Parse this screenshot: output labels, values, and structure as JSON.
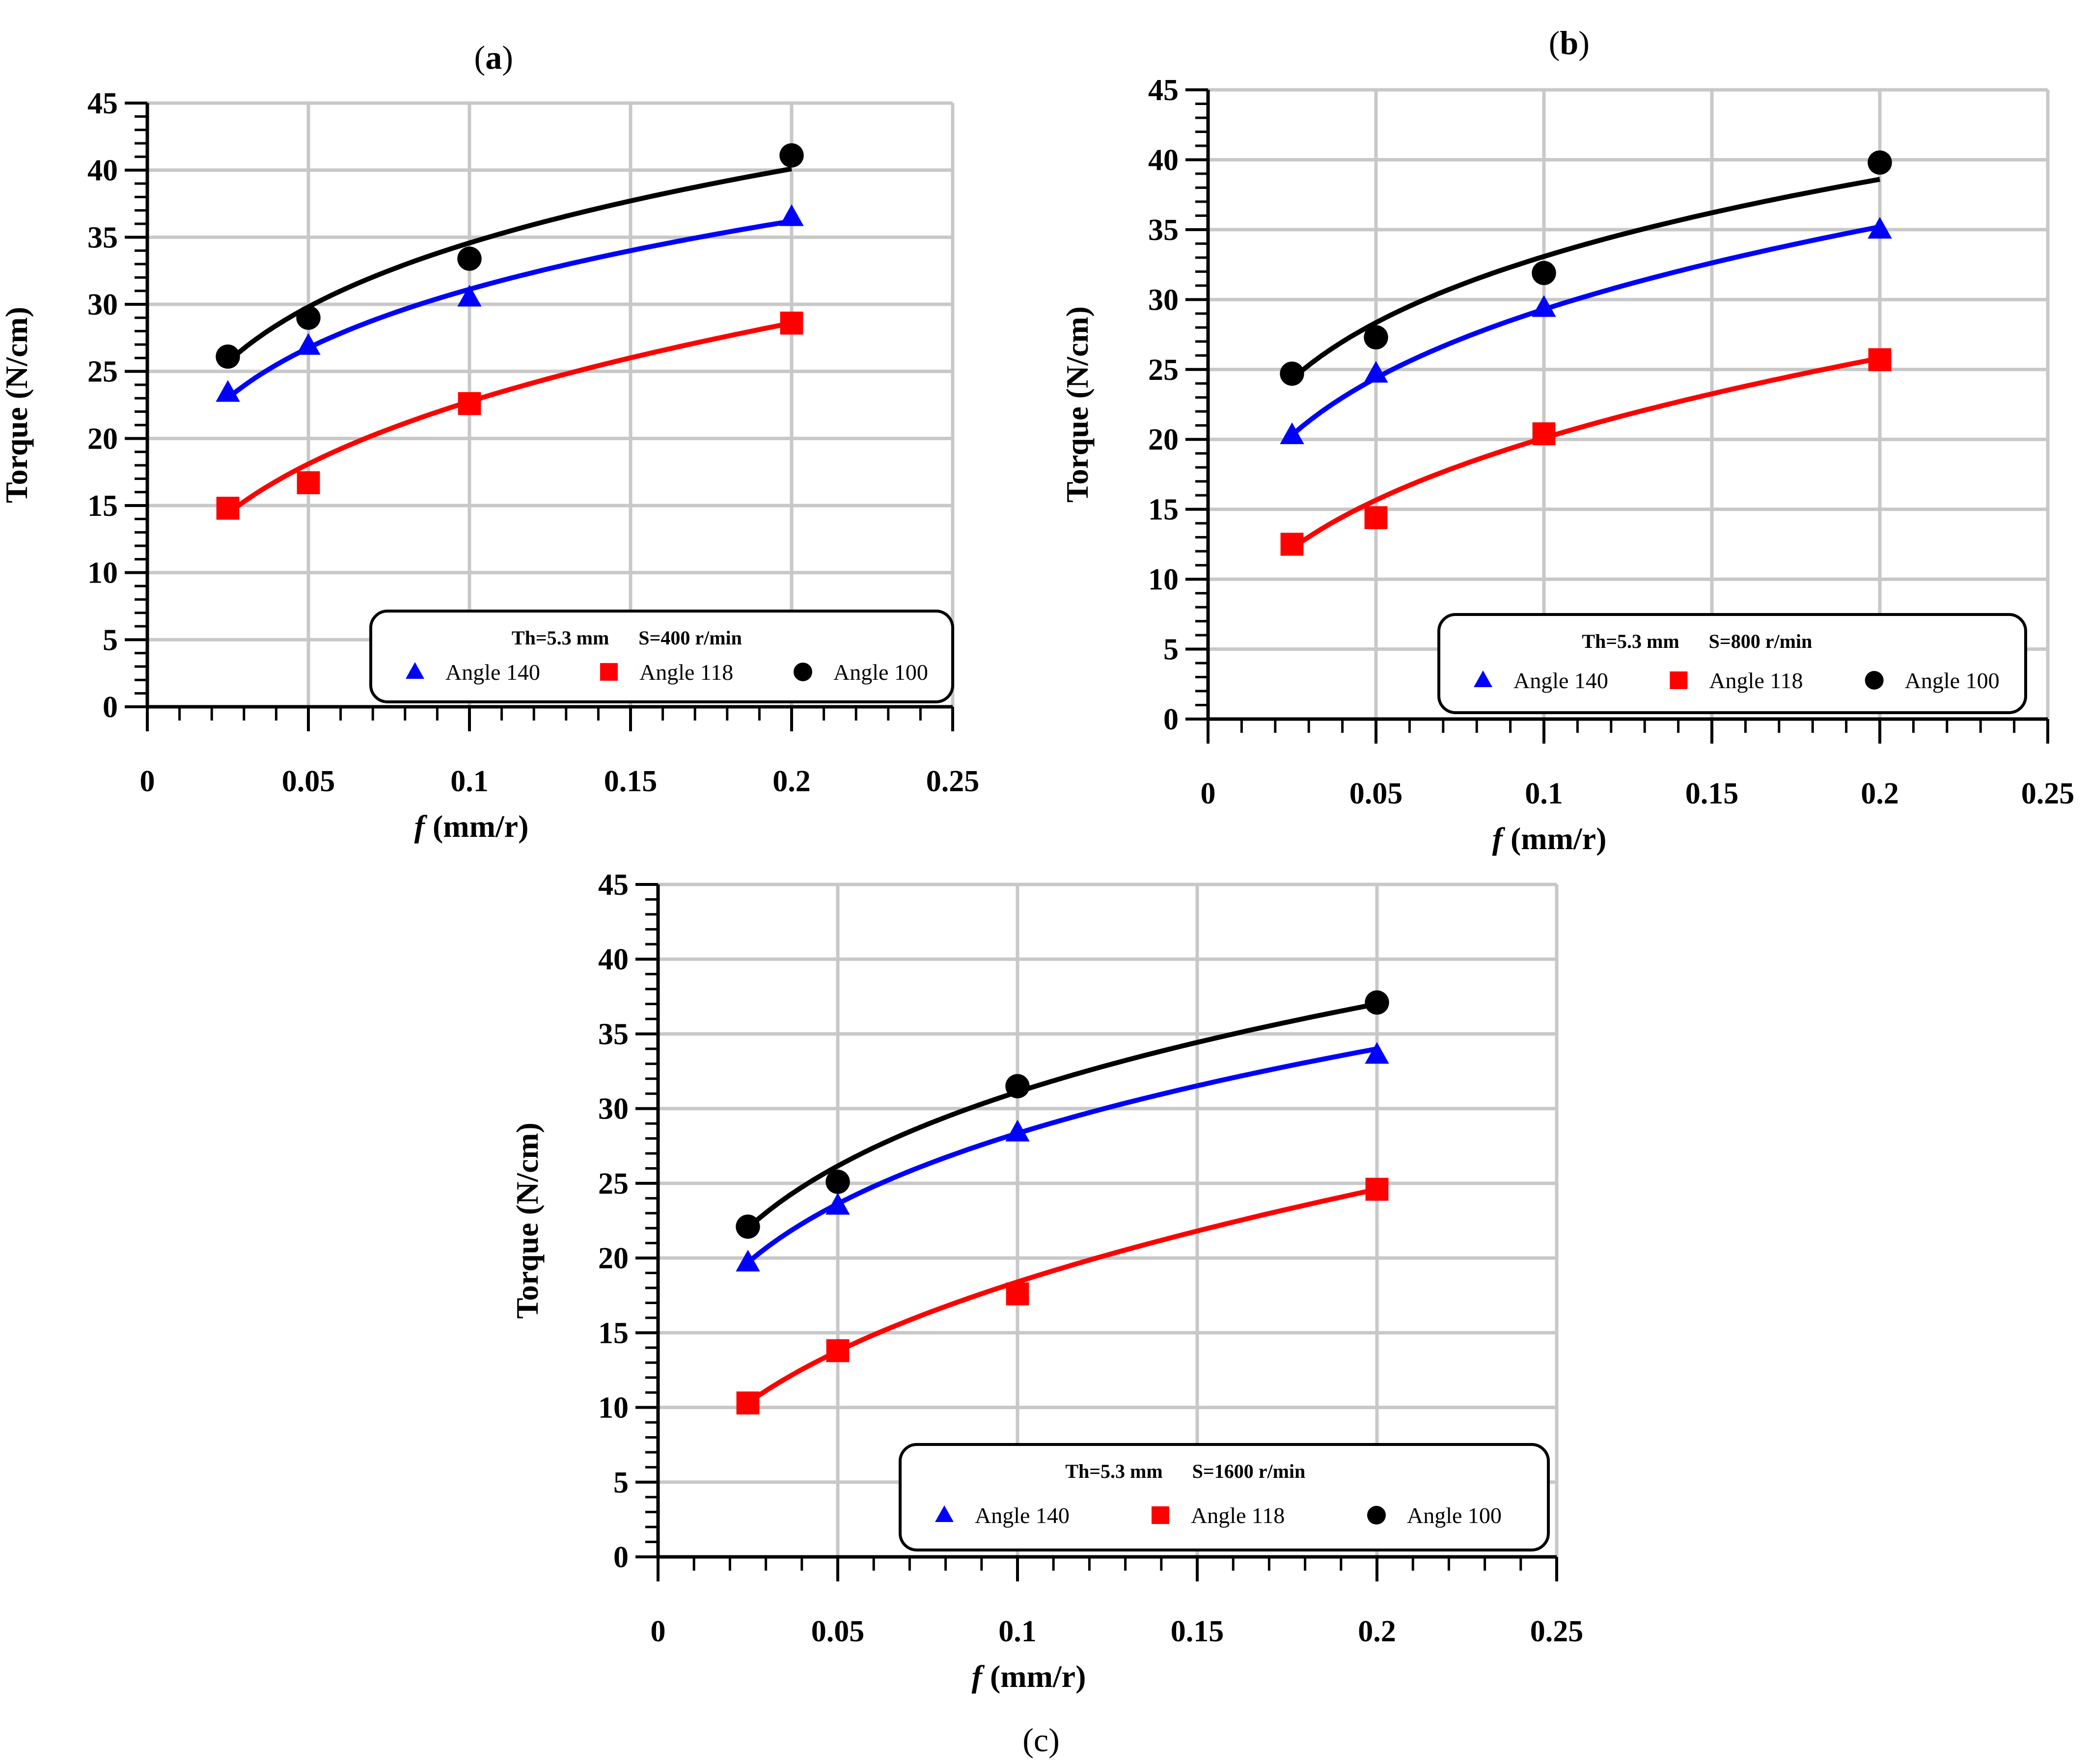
{
  "figure_caption": "(c)",
  "chart_data": [
    {
      "type": "scatter",
      "panel_label": "(a)",
      "panel_letter": "a",
      "xlabel_italic": "f",
      "xlabel_rest": " (mm/r)",
      "ylabel": "Torque (N/cm)",
      "xlim": [
        0,
        0.25
      ],
      "ylim": [
        0,
        45
      ],
      "xticks": [
        0,
        0.05,
        0.1,
        0.15,
        0.2,
        0.25
      ],
      "xtick_labels": [
        "0",
        "0.05",
        "0.1",
        "0.15",
        "0.2",
        "0.25"
      ],
      "yticks": [
        0,
        5,
        10,
        15,
        20,
        25,
        30,
        35,
        40,
        45
      ],
      "ytick_labels": [
        "0",
        "5",
        "10",
        "15",
        "20",
        "25",
        "30",
        "35",
        "40",
        "45"
      ],
      "grid": true,
      "legend": {
        "position": "bottom-right",
        "title_th": "Th=5.3 mm",
        "title_s": "S=400 r/min",
        "entries": [
          "Angle 140",
          "Angle 118",
          "Angle 100"
        ]
      },
      "series": [
        {
          "name": "Angle 140",
          "marker": "triangle",
          "color": "#0000ff",
          "x": [
            0.025,
            0.05,
            0.1,
            0.2
          ],
          "values": [
            23.4,
            26.9,
            30.5,
            36.5
          ],
          "fit_x": [
            0.025,
            0.2
          ],
          "fit_y": [
            23.0,
            36.2
          ]
        },
        {
          "name": "Angle 118",
          "marker": "square",
          "color": "#ff0000",
          "x": [
            0.025,
            0.05,
            0.1,
            0.2
          ],
          "values": [
            14.8,
            16.7,
            22.6,
            28.6
          ],
          "fit_x": [
            0.025,
            0.2
          ],
          "fit_y": [
            14.4,
            28.6
          ]
        },
        {
          "name": "Angle 100",
          "marker": "circle",
          "color": "#000000",
          "x": [
            0.025,
            0.05,
            0.1,
            0.2
          ],
          "values": [
            26.1,
            29.0,
            33.4,
            41.1
          ],
          "fit_x": [
            0.025,
            0.2
          ],
          "fit_y": [
            25.7,
            40.1
          ]
        }
      ]
    },
    {
      "type": "scatter",
      "panel_label": "(b)",
      "panel_letter": "b",
      "xlabel_italic": "f",
      "xlabel_rest": " (mm/r)",
      "ylabel": "Torque (N/cm)",
      "xlim": [
        0,
        0.25
      ],
      "ylim": [
        0,
        45
      ],
      "xticks": [
        0,
        0.05,
        0.1,
        0.15,
        0.2,
        0.25
      ],
      "xtick_labels": [
        "0",
        "0.05",
        "0.1",
        "0.15",
        "0.2",
        "0.25"
      ],
      "yticks": [
        0,
        5,
        10,
        15,
        20,
        25,
        30,
        35,
        40,
        45
      ],
      "ytick_labels": [
        "0",
        "5",
        "10",
        "15",
        "20",
        "25",
        "30",
        "35",
        "40",
        "45"
      ],
      "grid": true,
      "legend": {
        "position": "bottom-right",
        "title_th": "Th=5.3 mm",
        "title_s": "S=800 r/min",
        "entries": [
          "Angle 140",
          "Angle 118",
          "Angle 100"
        ]
      },
      "series": [
        {
          "name": "Angle 140",
          "marker": "triangle",
          "color": "#0000ff",
          "x": [
            0.025,
            0.05,
            0.1,
            0.2
          ],
          "values": [
            20.3,
            24.7,
            29.4,
            35.0
          ],
          "fit_x": [
            0.025,
            0.2
          ],
          "fit_y": [
            20.3,
            35.2
          ]
        },
        {
          "name": "Angle 118",
          "marker": "square",
          "color": "#ff0000",
          "x": [
            0.025,
            0.05,
            0.1,
            0.2
          ],
          "values": [
            12.5,
            14.4,
            20.4,
            25.7
          ],
          "fit_x": [
            0.025,
            0.2
          ],
          "fit_y": [
            12.2,
            25.8
          ]
        },
        {
          "name": "Angle 100",
          "marker": "circle",
          "color": "#000000",
          "x": [
            0.025,
            0.05,
            0.1,
            0.2
          ],
          "values": [
            24.7,
            27.3,
            31.9,
            39.8
          ],
          "fit_x": [
            0.025,
            0.2
          ],
          "fit_y": [
            24.3,
            38.6
          ]
        }
      ]
    },
    {
      "type": "scatter",
      "panel_label": "(c)",
      "panel_letter": "c",
      "xlabel_italic": "f",
      "xlabel_rest": " (mm/r)",
      "ylabel": "Torque (N/cm)",
      "xlim": [
        0,
        0.25
      ],
      "ylim": [
        0,
        45
      ],
      "xticks": [
        0,
        0.05,
        0.1,
        0.15,
        0.2,
        0.25
      ],
      "xtick_labels": [
        "0",
        "0.05",
        "0.1",
        "0.15",
        "0.2",
        "0.25"
      ],
      "yticks": [
        0,
        5,
        10,
        15,
        20,
        25,
        30,
        35,
        40,
        45
      ],
      "ytick_labels": [
        "0",
        "5",
        "10",
        "15",
        "20",
        "25",
        "30",
        "35",
        "40",
        "45"
      ],
      "grid": true,
      "legend": {
        "position": "bottom-right",
        "title_th": "Th=5.3 mm",
        "title_s": "S=1600 r/min",
        "entries": [
          "Angle 140",
          "Angle 118",
          "Angle 100"
        ]
      },
      "series": [
        {
          "name": "Angle 140",
          "marker": "triangle",
          "color": "#0000ff",
          "x": [
            0.025,
            0.05,
            0.1,
            0.2
          ],
          "values": [
            19.7,
            23.5,
            28.4,
            33.6
          ],
          "fit_x": [
            0.025,
            0.2
          ],
          "fit_y": [
            19.7,
            34.0
          ]
        },
        {
          "name": "Angle 118",
          "marker": "square",
          "color": "#ff0000",
          "x": [
            0.025,
            0.05,
            0.1,
            0.2
          ],
          "values": [
            10.3,
            13.8,
            17.6,
            24.6
          ],
          "fit_x": [
            0.025,
            0.2
          ],
          "fit_y": [
            10.3,
            24.6
          ]
        },
        {
          "name": "Angle 100",
          "marker": "circle",
          "color": "#000000",
          "x": [
            0.025,
            0.05,
            0.1,
            0.2
          ],
          "values": [
            22.1,
            25.1,
            31.5,
            37.1
          ],
          "fit_x": [
            0.025,
            0.2
          ],
          "fit_y": [
            22.0,
            37.0
          ]
        }
      ]
    }
  ]
}
